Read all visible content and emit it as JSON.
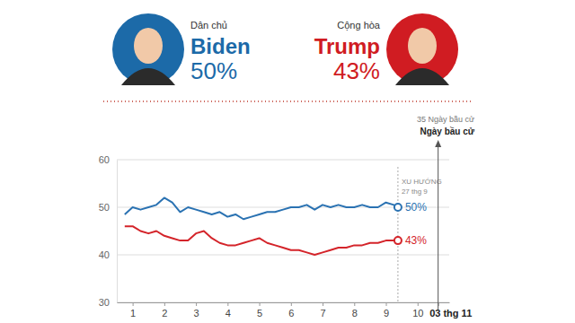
{
  "header": {
    "candidates": [
      {
        "party": "Dân chủ",
        "name": "Biden",
        "label": "50%",
        "color": "#1c6aa8"
      },
      {
        "party": "Cộng hòa",
        "name": "Trump",
        "label": "43%",
        "color": "#d01c22"
      }
    ]
  },
  "chart_data": {
    "type": "line",
    "x": [
      0.75,
      1,
      1.25,
      1.5,
      1.75,
      2,
      2.25,
      2.5,
      2.75,
      3,
      3.25,
      3.5,
      3.75,
      4,
      4.25,
      4.5,
      4.75,
      5,
      5.25,
      5.5,
      5.75,
      6,
      6.25,
      6.5,
      6.75,
      7,
      7.25,
      7.5,
      7.75,
      8,
      8.25,
      8.5,
      8.75,
      9,
      9.25,
      9.38
    ],
    "series": [
      {
        "color": "#2a72b2",
        "last_label": "50%",
        "values": [
          48.5,
          50,
          49.5,
          50,
          50.5,
          52,
          51,
          49,
          50,
          49.5,
          49,
          48.5,
          49,
          48,
          48.5,
          47.5,
          48,
          48.5,
          49,
          49,
          49.5,
          50,
          50,
          50.5,
          49.5,
          50.5,
          50,
          50.5,
          50,
          50,
          50.5,
          50,
          50,
          51,
          50.5,
          50
        ]
      },
      {
        "color": "#d4242a",
        "last_label": "43%",
        "values": [
          46,
          46,
          45,
          44.5,
          45,
          44,
          43.5,
          43,
          43,
          44.5,
          45,
          43.5,
          42.5,
          42,
          42,
          42.5,
          43,
          43.5,
          42.5,
          42,
          41.5,
          41,
          41,
          40.5,
          40,
          40.5,
          41,
          41.5,
          41.5,
          42,
          42,
          42.5,
          42.5,
          43,
          43,
          43
        ]
      }
    ],
    "xlim": [
      0.5,
      11
    ],
    "xticks": [
      1,
      2,
      3,
      4,
      5,
      6,
      7,
      8,
      9,
      10,
      {
        "value": 10.65,
        "label": "03 thg 11"
      }
    ],
    "ylim": [
      30,
      60
    ],
    "yticks": [
      30,
      40,
      50,
      60
    ],
    "grid": true,
    "annotations": {
      "trend": {
        "label": "XU HƯỚNG",
        "date": "27 thg 9",
        "x": 9.38
      },
      "election": {
        "countdown": "35 Ngày bầu cử",
        "label": "Ngày bầu cử",
        "x": 10.65
      }
    }
  }
}
